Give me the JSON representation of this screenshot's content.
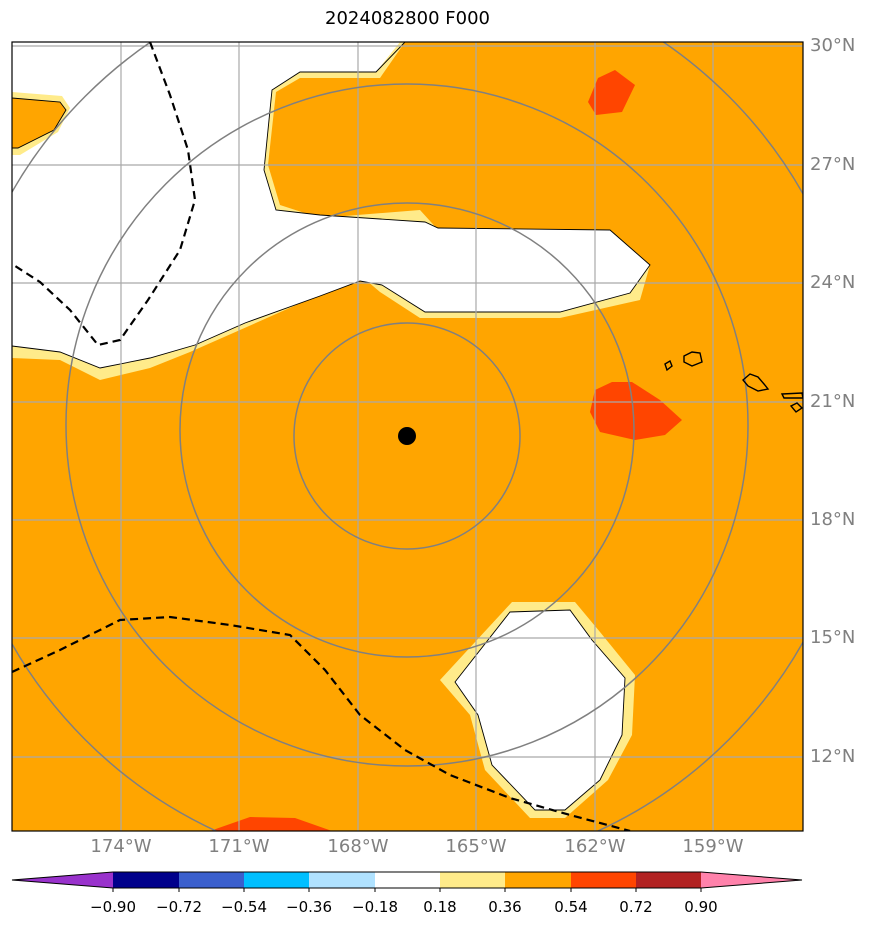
{
  "title": "2024082800 F000",
  "latitude_labels": [
    "30°N",
    "27°N",
    "24°N",
    "21°N",
    "18°N",
    "15°N",
    "12°N"
  ],
  "longitude_labels": [
    "174°W",
    "171°W",
    "168°W",
    "165°W",
    "162°W",
    "159°W"
  ],
  "colorbar": {
    "tick_labels": [
      "−0.90",
      "−0.72",
      "−0.54",
      "−0.36",
      "−0.18",
      "0.18",
      "0.36",
      "0.54",
      "0.72",
      "0.90"
    ],
    "colors": [
      "#9932cc",
      "#00008b",
      "#3a5fcd",
      "#00bfff",
      "#b0e2ff",
      "#ffffff",
      "#ffeb8a",
      "#ffa500",
      "#ff4500",
      "#b22222",
      "#ff82ab"
    ]
  },
  "map": {
    "background_color": "#ffa500",
    "outline_color": "#000000",
    "range_ring_color": "#808080",
    "gridline_color": "#a9a9a9",
    "center_marker_color": "#000000"
  }
}
